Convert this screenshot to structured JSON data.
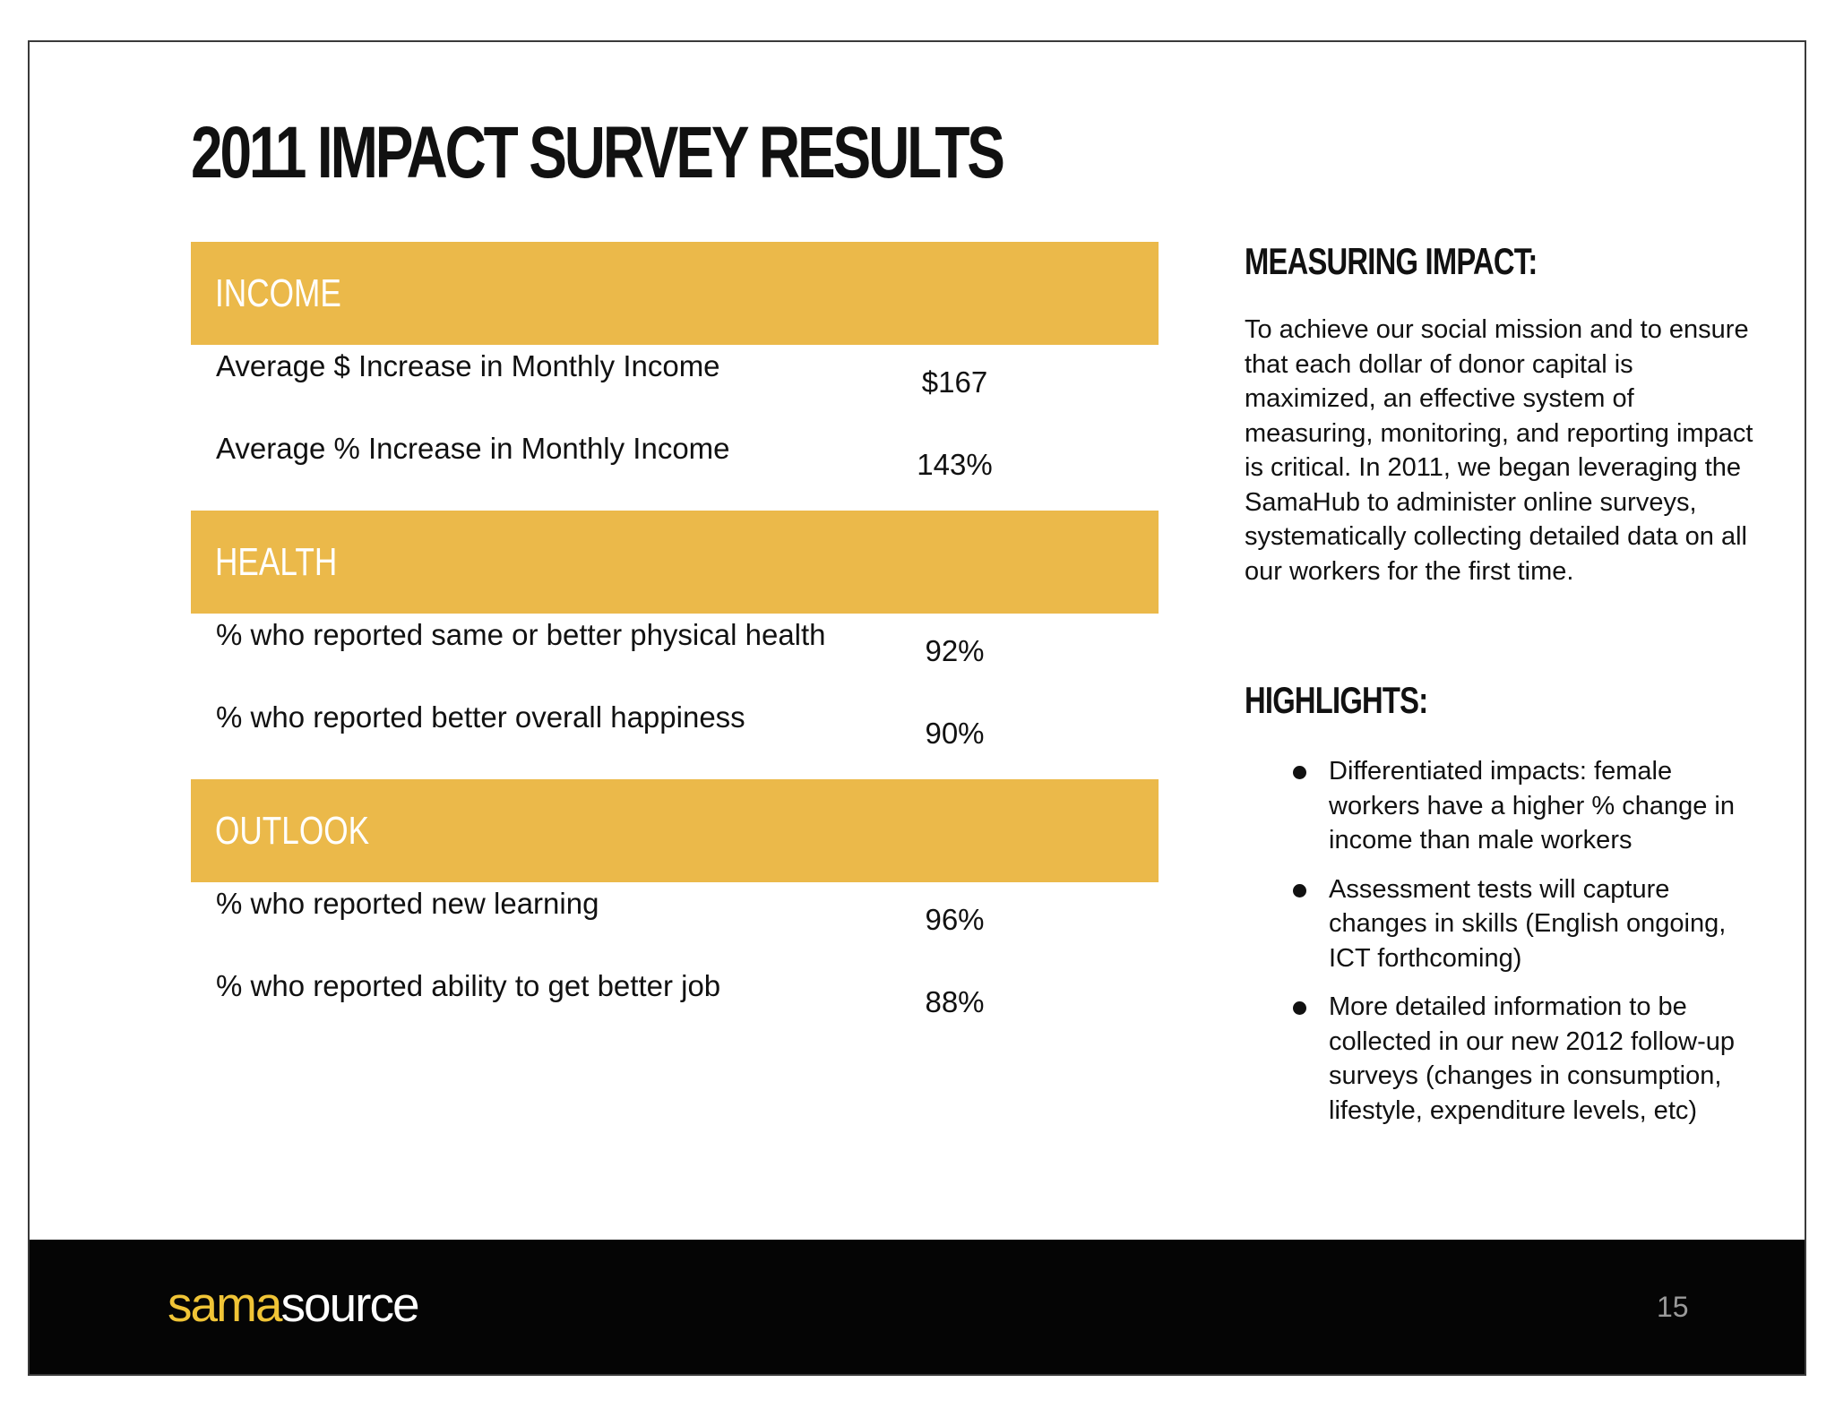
{
  "title": "2011 IMPACT SURVEY RESULTS",
  "sections": [
    {
      "header": "INCOME",
      "rows": [
        {
          "label": "Average $ Increase in Monthly Income",
          "value": "$167"
        },
        {
          "label": "Average % Increase in Monthly Income",
          "value": "143%"
        }
      ]
    },
    {
      "header": "HEALTH",
      "rows": [
        {
          "label": "% who reported same or better physical health",
          "value": "92%"
        },
        {
          "label": "% who reported better overall happiness",
          "value": "90%"
        }
      ]
    },
    {
      "header": "OUTLOOK",
      "rows": [
        {
          "label": "% who reported new learning",
          "value": "96%"
        },
        {
          "label": "% who reported ability to get better job",
          "value": "88%"
        }
      ]
    }
  ],
  "measuring": {
    "heading": "MEASURING IMPACT:",
    "text": "To achieve our social mission and to ensure that each dollar of donor capital is maximized, an effective system of measuring, monitoring, and reporting impact is critical.  In 2011, we began leveraging the SamaHub to administer online surveys, systematically collecting detailed data on all our workers for the first time."
  },
  "highlights": {
    "heading": "HIGHLIGHTS:",
    "items": [
      "Differentiated impacts:  female workers have a higher % change in income than male workers",
      "Assessment tests will capture changes in skills (English ongoing, ICT forthcoming)",
      "More detailed information to be collected in our new 2012 follow-up surveys (changes in consumption, lifestyle, expenditure levels, etc)"
    ]
  },
  "footer": {
    "logo_part1": "sama",
    "logo_part2": "source",
    "page_number": "15"
  },
  "colors": {
    "section_header": "#ebb94a",
    "footer": "#050505",
    "logo_accent": "#f0c436"
  }
}
